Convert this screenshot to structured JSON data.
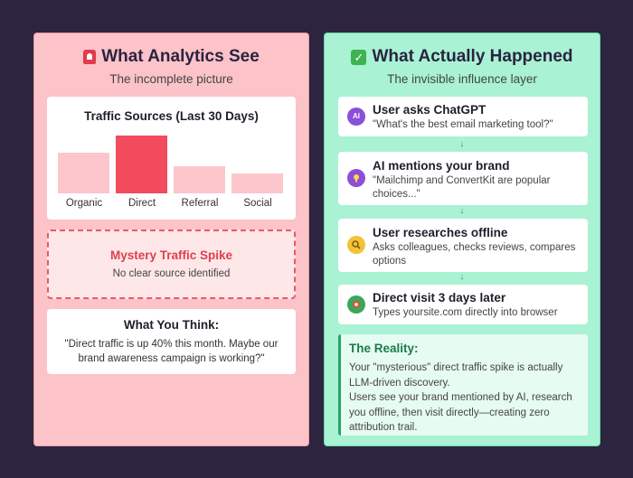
{
  "left_panel": {
    "title": "What Analytics See",
    "icon": "siren-icon",
    "subtitle": "The incomplete picture",
    "chart_data": {
      "type": "bar",
      "title": "Traffic Sources (Last 30 Days)",
      "categories": [
        "Organic",
        "Direct",
        "Referral",
        "Social"
      ],
      "values": [
        45,
        64,
        30,
        22
      ],
      "highlight": "Direct",
      "colors": {
        "normal": "#fdc6cc",
        "highlight": "#f24b5d"
      }
    },
    "mystery": {
      "title": "Mystery Traffic Spike",
      "subtitle": "No clear source identified"
    },
    "think": {
      "title": "What You Think:",
      "text": "\"Direct traffic is up 40% this month. Maybe our brand awareness campaign is working?\""
    }
  },
  "right_panel": {
    "title": "What Actually Happened",
    "icon": "check-icon",
    "subtitle": "The invisible influence layer",
    "steps": [
      {
        "icon_text": "AI",
        "icon": "ai-icon",
        "color": "#8b4fd8",
        "title": "User asks ChatGPT",
        "text": "\"What's the best email marketing tool?\""
      },
      {
        "icon_text": "",
        "icon": "lightbulb-icon",
        "color": "#8b4fd8",
        "title": "AI mentions your brand",
        "text": "\"Mailchimp and ConvertKit are popular choices...\""
      },
      {
        "icon_text": "",
        "icon": "magnifier-icon",
        "color": "#f2c335",
        "title": "User researches offline",
        "text": "Asks colleagues, checks reviews, compares options"
      },
      {
        "icon_text": "",
        "icon": "target-icon",
        "color": "#3aa85a",
        "title": "Direct visit 3 days later",
        "text": "Types yoursite.com directly into browser"
      }
    ],
    "arrow": "↓",
    "reality": {
      "title": "The Reality:",
      "text": "Your \"mysterious\" direct traffic spike is actually LLM-driven discovery.",
      "text2": "Users see your brand mentioned by AI, research you offline, then visit directly—creating zero attribution trail."
    }
  }
}
